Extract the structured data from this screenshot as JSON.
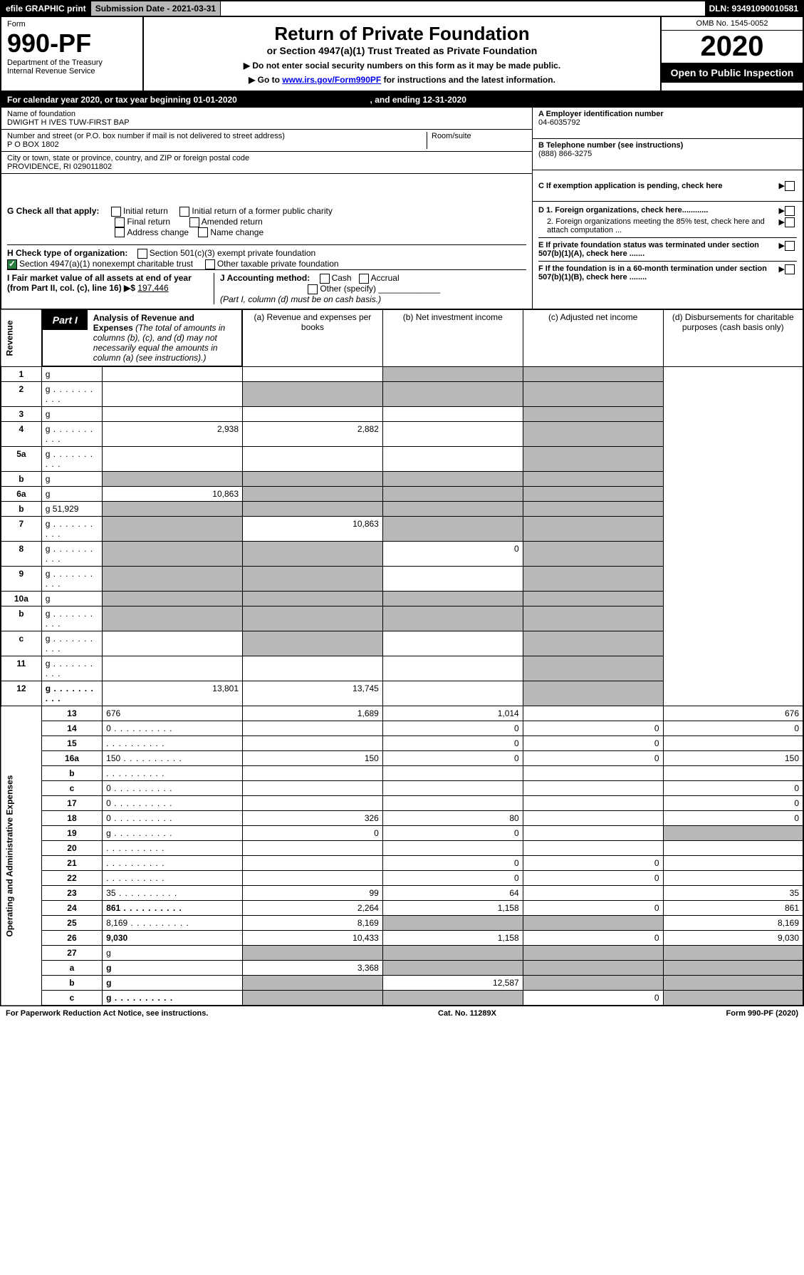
{
  "top_bar": {
    "efile": "efile GRAPHIC print",
    "submission": "Submission Date - 2021-03-31",
    "dln": "DLN: 93491090010581"
  },
  "header": {
    "form_word": "Form",
    "form_num": "990-PF",
    "dept": "Department of the Treasury",
    "irs": "Internal Revenue Service",
    "title": "Return of Private Foundation",
    "subtitle": "or Section 4947(a)(1) Trust Treated as Private Foundation",
    "note1": "▶ Do not enter social security numbers on this form as it may be made public.",
    "note2_pre": "▶ Go to ",
    "note2_link": "www.irs.gov/Form990PF",
    "note2_post": " for instructions and the latest information.",
    "omb": "OMB No. 1545-0052",
    "year": "2020",
    "inspect": "Open to Public Inspection"
  },
  "cal_year": {
    "pre": "For calendar year 2020, or tax year beginning ",
    "begin": "01-01-2020",
    "mid": " , and ending ",
    "end": "12-31-2020"
  },
  "info": {
    "name_label": "Name of foundation",
    "name": "DWIGHT H IVES TUW-FIRST BAP",
    "addr_label": "Number and street (or P.O. box number if mail is not delivered to street address)",
    "room_label": "Room/suite",
    "addr": "P O BOX 1802",
    "city_label": "City or town, state or province, country, and ZIP or foreign postal code",
    "city": "PROVIDENCE, RI  029011802",
    "a_label": "A Employer identification number",
    "ein": "04-6035792",
    "b_label": "B Telephone number (see instructions)",
    "phone": "(888) 866-3275",
    "c_label": "C If exemption application is pending, check here"
  },
  "checks": {
    "g_label": "G Check all that apply:",
    "g_opts": [
      "Initial return",
      "Initial return of a former public charity",
      "Final return",
      "Amended return",
      "Address change",
      "Name change"
    ],
    "h_label": "H Check type of organization:",
    "h_opt1": "Section 501(c)(3) exempt private foundation",
    "h_opt2": "Section 4947(a)(1) nonexempt charitable trust",
    "h_opt3": "Other taxable private foundation",
    "i_label": "I Fair market value of all assets at end of year (from Part II, col. (c), line 16) ▶$",
    "i_val": "  197,446",
    "j_label": "J Accounting method:",
    "j_cash": "Cash",
    "j_accrual": "Accrual",
    "j_other": "Other (specify)",
    "j_note": "(Part I, column (d) must be on cash basis.)",
    "d1": "D 1. Foreign organizations, check here............",
    "d2": "2. Foreign organizations meeting the 85% test, check here and attach computation ...",
    "e": "E  If private foundation status was terminated under section 507(b)(1)(A), check here .......",
    "f": "F  If the foundation is in a 60-month termination under section 507(b)(1)(B), check here ........"
  },
  "part1": {
    "label": "Part I",
    "title": "Analysis of Revenue and Expenses",
    "title_note": " (The total of amounts in columns (b), (c), and (d) may not necessarily equal the amounts in column (a) (see instructions).)",
    "cols": {
      "a": "(a)    Revenue and expenses per books",
      "b": "(b)   Net investment income",
      "c": "(c)   Adjusted net income",
      "d": "(d)   Disbursements for charitable purposes (cash basis only)"
    }
  },
  "rows": [
    {
      "n": "1",
      "d": "g",
      "a": "",
      "b": "",
      "c": "g"
    },
    {
      "n": "2",
      "d": "g",
      "dots": true,
      "a": "",
      "b": "g",
      "c": "g"
    },
    {
      "n": "3",
      "d": "g",
      "a": "",
      "b": "",
      "c": ""
    },
    {
      "n": "4",
      "d": "g",
      "dots": true,
      "a": "2,938",
      "b": "2,882",
      "c": ""
    },
    {
      "n": "5a",
      "d": "g",
      "dots": true,
      "a": "",
      "b": "",
      "c": ""
    },
    {
      "n": "b",
      "d": "g",
      "a": "g",
      "b": "g",
      "c": "g"
    },
    {
      "n": "6a",
      "d": "g",
      "a": "10,863",
      "b": "g",
      "c": "g"
    },
    {
      "n": "b",
      "d": "g",
      "val": "51,929",
      "a": "g",
      "b": "g",
      "c": "g"
    },
    {
      "n": "7",
      "d": "g",
      "dots": true,
      "a": "g",
      "b": "10,863",
      "c": "g"
    },
    {
      "n": "8",
      "d": "g",
      "dots": true,
      "a": "g",
      "b": "g",
      "c": "0"
    },
    {
      "n": "9",
      "d": "g",
      "dots": true,
      "a": "g",
      "b": "g",
      "c": ""
    },
    {
      "n": "10a",
      "d": "g",
      "a": "g",
      "b": "g",
      "c": "g"
    },
    {
      "n": "b",
      "d": "g",
      "dots": true,
      "a": "g",
      "b": "g",
      "c": "g"
    },
    {
      "n": "c",
      "d": "g",
      "dots": true,
      "a": "",
      "b": "g",
      "c": ""
    },
    {
      "n": "11",
      "d": "g",
      "dots": true,
      "a": "",
      "b": "",
      "c": ""
    },
    {
      "n": "12",
      "d": "g",
      "dots": true,
      "bold": true,
      "a": "13,801",
      "b": "13,745",
      "c": ""
    },
    {
      "n": "13",
      "d": "676",
      "a": "1,689",
      "b": "1,014",
      "c": ""
    },
    {
      "n": "14",
      "d": "0",
      "dots": true,
      "a": "",
      "b": "0",
      "c": "0"
    },
    {
      "n": "15",
      "d": "",
      "dots": true,
      "a": "",
      "b": "0",
      "c": "0"
    },
    {
      "n": "16a",
      "d": "150",
      "dots": true,
      "a": "150",
      "b": "0",
      "c": "0"
    },
    {
      "n": "b",
      "d": "",
      "dots": true,
      "a": "",
      "b": "",
      "c": ""
    },
    {
      "n": "c",
      "d": "0",
      "dots": true,
      "a": "",
      "b": "",
      "c": ""
    },
    {
      "n": "17",
      "d": "0",
      "dots": true,
      "a": "",
      "b": "",
      "c": ""
    },
    {
      "n": "18",
      "d": "0",
      "dots": true,
      "a": "326",
      "b": "80",
      "c": ""
    },
    {
      "n": "19",
      "d": "g",
      "dots": true,
      "a": "0",
      "b": "0",
      "c": ""
    },
    {
      "n": "20",
      "d": "",
      "dots": true,
      "a": "",
      "b": "",
      "c": ""
    },
    {
      "n": "21",
      "d": "",
      "dots": true,
      "a": "",
      "b": "0",
      "c": "0"
    },
    {
      "n": "22",
      "d": "",
      "dots": true,
      "a": "",
      "b": "0",
      "c": "0"
    },
    {
      "n": "23",
      "d": "35",
      "dots": true,
      "a": "99",
      "b": "64",
      "c": ""
    },
    {
      "n": "24",
      "d": "861",
      "dots": true,
      "bold": true,
      "a": "2,264",
      "b": "1,158",
      "c": "0"
    },
    {
      "n": "25",
      "d": "8,169",
      "dots": true,
      "a": "8,169",
      "b": "g",
      "c": "g"
    },
    {
      "n": "26",
      "d": "9,030",
      "bold": true,
      "a": "10,433",
      "b": "1,158",
      "c": "0"
    },
    {
      "n": "27",
      "d": "g",
      "a": "g",
      "b": "g",
      "c": "g"
    },
    {
      "n": "a",
      "d": "g",
      "bold": true,
      "a": "3,368",
      "b": "g",
      "c": "g"
    },
    {
      "n": "b",
      "d": "g",
      "bold": true,
      "a": "g",
      "b": "12,587",
      "c": "g"
    },
    {
      "n": "c",
      "d": "g",
      "bold": true,
      "dots": true,
      "a": "g",
      "b": "g",
      "c": "0"
    }
  ],
  "vert": {
    "revenue": "Revenue",
    "expenses": "Operating and Administrative Expenses"
  },
  "footer": {
    "left": "For Paperwork Reduction Act Notice, see instructions.",
    "mid": "Cat. No. 11289X",
    "right": "Form 990-PF (2020)"
  }
}
